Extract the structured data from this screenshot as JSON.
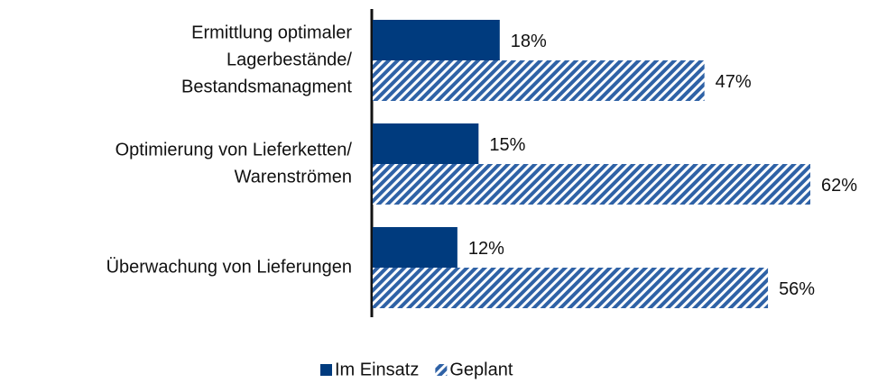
{
  "chart_data": {
    "type": "hbar",
    "categories": [
      [
        "Ermittlung optimaler",
        "Lagerbestände/",
        "Bestandsmanagment"
      ],
      [
        "Optimierung von Lieferketten/",
        "Warenströmen"
      ],
      [
        "Überwachung von Lieferungen"
      ]
    ],
    "series": [
      {
        "name": "Im Einsatz",
        "color": "#003b7e",
        "pattern": "solid",
        "values": [
          18,
          15,
          12
        ],
        "value_labels": [
          "18%",
          "15%",
          "12%"
        ]
      },
      {
        "name": "Geplant",
        "color": "#2f62a6",
        "pattern": "hatch",
        "values": [
          47,
          62,
          56
        ],
        "value_labels": [
          "47%",
          "62%",
          "56%"
        ]
      }
    ],
    "legend": "bottom"
  }
}
